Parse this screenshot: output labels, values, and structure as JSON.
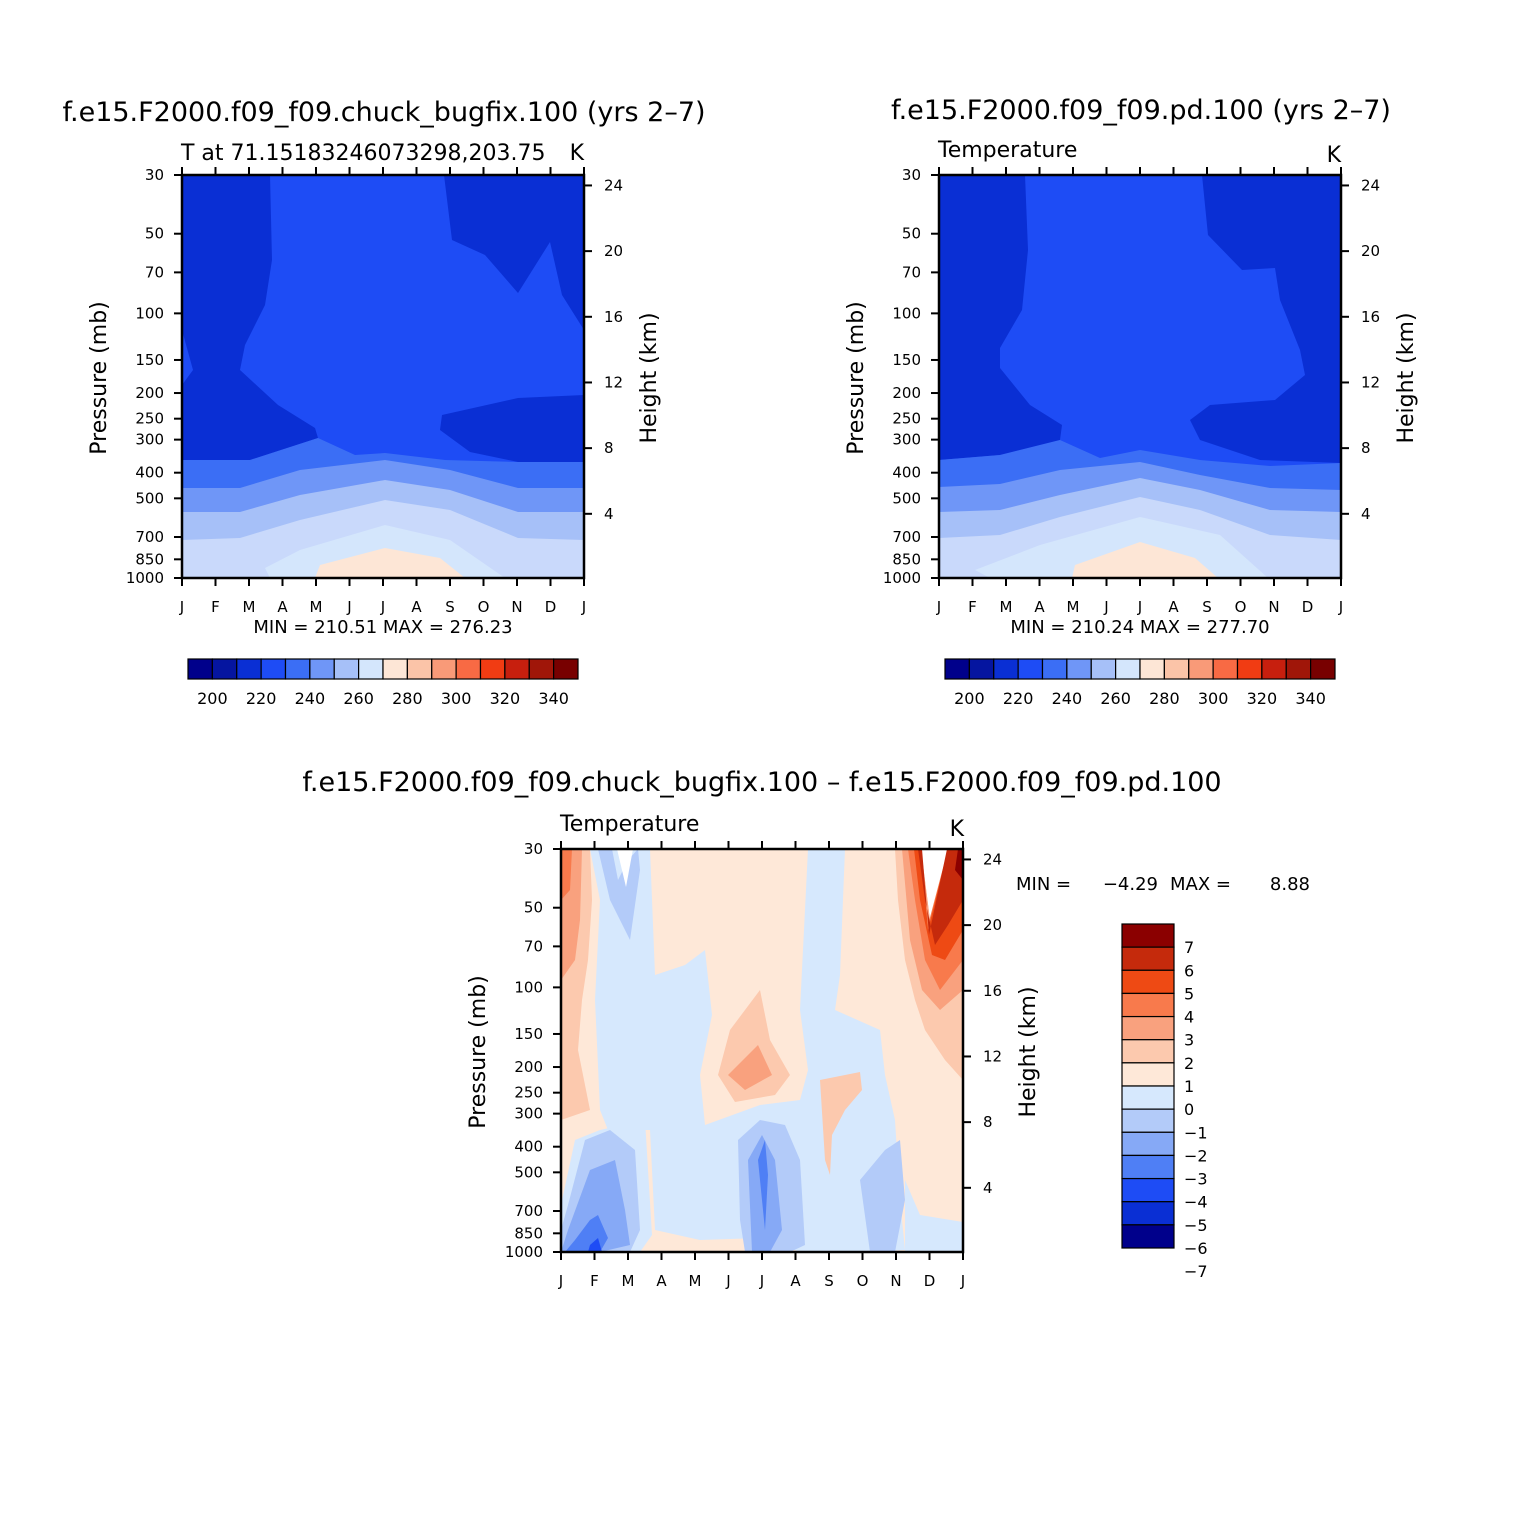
{
  "colors": {
    "abs_scale": [
      "#00008b",
      "#0515a0",
      "#0a2fd4",
      "#1e4cf5",
      "#3b6ef5",
      "#6f96f7",
      "#a6c0f8",
      "#d4e6fc",
      "#fde6d6",
      "#fbc4a8",
      "#f99a78",
      "#f86a44",
      "#f13c13",
      "#c71f0e",
      "#a01609",
      "#780000"
    ],
    "diff_scale": [
      "#00008b",
      "#0a2fd4",
      "#1e4cf5",
      "#4f7ff5",
      "#86a9f6",
      "#b3cbf9",
      "#d6e8fd",
      "#fee8d8",
      "#fcc9ae",
      "#f9a17e",
      "#f87a4c",
      "#ee4a14",
      "#c52a0c",
      "#8b0000"
    ]
  },
  "months": [
    "J",
    "F",
    "M",
    "A",
    "M",
    "J",
    "J",
    "A",
    "S",
    "O",
    "N",
    "D",
    "J"
  ],
  "pressure_ticks": [
    "30",
    "50",
    "70",
    "100",
    "150",
    "200",
    "250",
    "300",
    "400",
    "500",
    "700",
    "850",
    "1000"
  ],
  "height_ticks": [
    "24",
    "20",
    "16",
    "12",
    "8",
    "4"
  ],
  "panels": {
    "p1": {
      "title": "f.e15.F2000.f09_f09.chuck_bugfix.100 (yrs 2–7)",
      "left": "T at 71.15183246073298,203.75",
      "right": "K",
      "minmax": "MIN = 210.51 MAX = 276.23",
      "ylabel": "Pressure (mb)",
      "ylabel2": "Height (km)"
    },
    "p2": {
      "title": "f.e15.F2000.f09_f09.pd.100 (yrs 2–7)",
      "left": "Temperature",
      "right": "K",
      "minmax": "MIN = 210.24 MAX = 277.70",
      "ylabel": "Pressure (mb)",
      "ylabel2": "Height (km)"
    },
    "p3": {
      "title": "f.e15.F2000.f09_f09.chuck_bugfix.100 – f.e15.F2000.f09_f09.pd.100",
      "left": "Temperature",
      "right": "K",
      "minmax_label_min": "MIN =",
      "minmax_min": "−4.29",
      "minmax_label_max": "MAX =",
      "minmax_max": "8.88",
      "ylabel": "Pressure (mb)",
      "ylabel2": "Height (km)"
    }
  },
  "abs_colorbar_labels": [
    "200",
    "220",
    "240",
    "260",
    "280",
    "300",
    "320",
    "340"
  ],
  "diff_colorbar_labels": [
    "7",
    "6",
    "5",
    "4",
    "3",
    "2",
    "1",
    "0",
    "−1",
    "−2",
    "−3",
    "−4",
    "−5",
    "−6",
    "−7"
  ],
  "chart_data": [
    {
      "type": "heatmap",
      "title": "f.e15.F2000.f09_f09.chuck_bugfix.100 (yrs 2–7)",
      "subtitle": "T at 71.15183246073298,203.75",
      "units": "K",
      "xlabel": "",
      "ylabel": "Pressure (mb)",
      "ylabel_right": "Height (km)",
      "x_categories": [
        "J",
        "F",
        "M",
        "A",
        "M",
        "J",
        "J",
        "A",
        "S",
        "O",
        "N",
        "D",
        "J"
      ],
      "y_pressure_mb": [
        30,
        50,
        70,
        100,
        150,
        200,
        250,
        300,
        400,
        500,
        700,
        850,
        1000
      ],
      "y_height_km": [
        24,
        20,
        16,
        12,
        8,
        4
      ],
      "contour_levels": [
        200,
        205,
        210,
        215,
        220,
        225,
        230,
        235,
        240,
        245,
        250,
        255,
        260,
        265,
        270,
        275,
        280
      ],
      "min": 210.51,
      "max": 276.23
    },
    {
      "type": "heatmap",
      "title": "f.e15.F2000.f09_f09.pd.100 (yrs 2–7)",
      "subtitle": "Temperature",
      "units": "K",
      "ylabel": "Pressure (mb)",
      "ylabel_right": "Height (km)",
      "x_categories": [
        "J",
        "F",
        "M",
        "A",
        "M",
        "J",
        "J",
        "A",
        "S",
        "O",
        "N",
        "D",
        "J"
      ],
      "y_pressure_mb": [
        30,
        50,
        70,
        100,
        150,
        200,
        250,
        300,
        400,
        500,
        700,
        850,
        1000
      ],
      "y_height_km": [
        24,
        20,
        16,
        12,
        8,
        4
      ],
      "min": 210.24,
      "max": 277.7
    },
    {
      "type": "heatmap",
      "title": "f.e15.F2000.f09_f09.chuck_bugfix.100 – f.e15.F2000.f09_f09.pd.100",
      "subtitle": "Temperature",
      "units": "K",
      "ylabel": "Pressure (mb)",
      "ylabel_right": "Height (km)",
      "x_categories": [
        "J",
        "F",
        "M",
        "A",
        "M",
        "J",
        "J",
        "A",
        "S",
        "O",
        "N",
        "D",
        "J"
      ],
      "y_pressure_mb": [
        30,
        50,
        70,
        100,
        150,
        200,
        250,
        300,
        400,
        500,
        700,
        850,
        1000
      ],
      "y_height_km": [
        24,
        20,
        16,
        12,
        8,
        4
      ],
      "contour_levels": [
        -7,
        -6,
        -5,
        -4,
        -3,
        -2,
        -1,
        0,
        1,
        2,
        3,
        4,
        5,
        6,
        7
      ],
      "min": -4.29,
      "max": 8.88
    }
  ]
}
